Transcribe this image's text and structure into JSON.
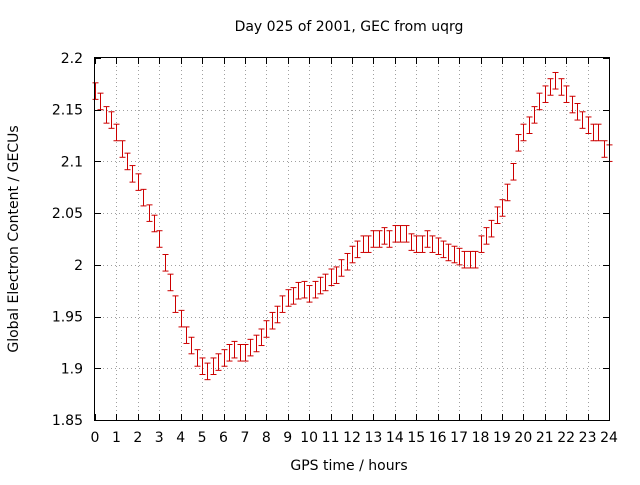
{
  "chart_data": {
    "type": "scatter",
    "title": "Day 025 of 2001, GEC from uqrg",
    "xlabel": "GPS time / hours",
    "ylabel": "Global Electron Content / GECUs",
    "xlim": [
      0,
      24
    ],
    "ylim": [
      1.85,
      2.2
    ],
    "xticks": [
      "0",
      "1",
      "2",
      "3",
      "4",
      "5",
      "6",
      "7",
      "8",
      "9",
      "10",
      "11",
      "12",
      "13",
      "14",
      "15",
      "16",
      "17",
      "18",
      "19",
      "20",
      "21",
      "22",
      "23",
      "24"
    ],
    "yticks": [
      "1.85",
      "1.9",
      "1.95",
      "2",
      "2.05",
      "2.1",
      "2.15",
      "2.2"
    ],
    "ytick_values": [
      1.85,
      1.9,
      1.95,
      2.0,
      2.05,
      2.1,
      2.15,
      2.2
    ],
    "grid": true,
    "grid_style": "dotted",
    "error_bar_half_width": 0.008,
    "series_color": "#cc0000",
    "series": [
      {
        "x": [
          0.0,
          0.25,
          0.5,
          0.75,
          1.0,
          1.25,
          1.5,
          1.75,
          2.0,
          2.25,
          2.5,
          2.75,
          3.0,
          3.25,
          3.5,
          3.75,
          4.0,
          4.25,
          4.5,
          4.75,
          5.0,
          5.25,
          5.5,
          5.75,
          6.0,
          6.25,
          6.5,
          6.75,
          7.0,
          7.25,
          7.5,
          7.75,
          8.0,
          8.25,
          8.5,
          8.75,
          9.0,
          9.25,
          9.5,
          9.75,
          10.0,
          10.25,
          10.5,
          10.75,
          11.0,
          11.25,
          11.5,
          11.75,
          12.0,
          12.25,
          12.5,
          12.75,
          13.0,
          13.25,
          13.5,
          13.75,
          14.0,
          14.25,
          14.5,
          14.75,
          15.0,
          15.25,
          15.5,
          15.75,
          16.0,
          16.25,
          16.5,
          16.75,
          17.0,
          17.25,
          17.5,
          17.75,
          18.0,
          18.25,
          18.5,
          18.75,
          19.0,
          19.25,
          19.5,
          19.75,
          20.0,
          20.25,
          20.5,
          20.75,
          21.0,
          21.25,
          21.5,
          21.75,
          22.0,
          22.25,
          22.5,
          22.75,
          23.0,
          23.25,
          23.5,
          23.75,
          24.0
        ],
        "y": [
          2.168,
          2.158,
          2.145,
          2.14,
          2.128,
          2.112,
          2.1,
          2.088,
          2.08,
          2.065,
          2.05,
          2.04,
          2.025,
          2.002,
          1.983,
          1.962,
          1.948,
          1.932,
          1.922,
          1.91,
          1.902,
          1.897,
          1.902,
          1.906,
          1.91,
          1.915,
          1.918,
          1.915,
          1.915,
          1.92,
          1.924,
          1.93,
          1.938,
          1.946,
          1.952,
          1.962,
          1.968,
          1.97,
          1.975,
          1.976,
          1.972,
          1.976,
          1.98,
          1.983,
          1.988,
          1.99,
          1.997,
          2.003,
          2.01,
          2.015,
          2.02,
          2.02,
          2.025,
          2.025,
          2.028,
          2.025,
          2.03,
          2.03,
          2.03,
          2.022,
          2.02,
          2.02,
          2.025,
          2.02,
          2.018,
          2.015,
          2.012,
          2.01,
          2.008,
          2.005,
          2.005,
          2.005,
          2.02,
          2.028,
          2.035,
          2.048,
          2.055,
          2.07,
          2.09,
          2.118,
          2.128,
          2.135,
          2.145,
          2.158,
          2.165,
          2.172,
          2.178,
          2.172,
          2.165,
          2.155,
          2.148,
          2.14,
          2.135,
          2.128,
          2.128,
          2.112,
          2.108
        ]
      }
    ]
  }
}
